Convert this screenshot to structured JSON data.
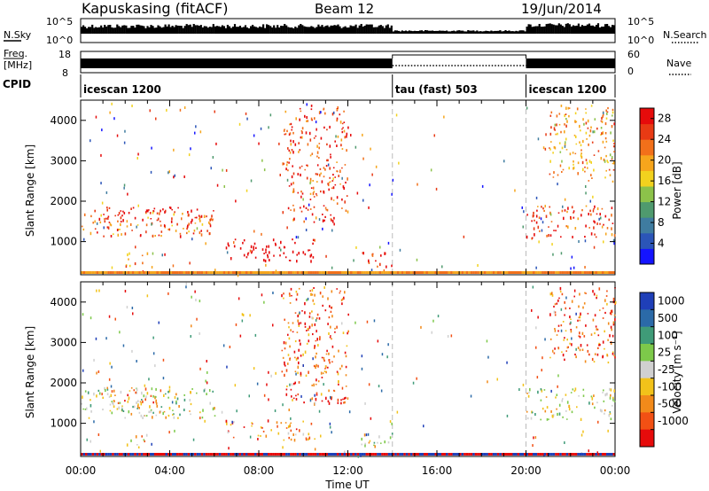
{
  "header": {
    "station": "Kapuskasing (fitACF)",
    "beam": "Beam 12",
    "date": "19/Jun/2014"
  },
  "summary": {
    "nsky_label": "N.Sky",
    "nsky_top": "10^5",
    "nsky_bottom": "10^0",
    "nsearch_top": "10^5",
    "nsearch_bottom": "10^0",
    "nsearch_label": "N.Search",
    "freq_label_1": "Freq.",
    "freq_label_2": "[MHz]",
    "freq_top": "18",
    "freq_bottom": "8",
    "nave_top": "60",
    "nave_bottom": "0",
    "nave_label": "Nave",
    "cpid_label": "CPID",
    "cpid_segments": [
      {
        "label": "icescan 1200",
        "start_h": 0,
        "end_h": 14
      },
      {
        "label": "tau (fast) 503",
        "start_h": 14,
        "end_h": 20
      },
      {
        "label": "icescan 1200",
        "start_h": 20,
        "end_h": 24
      }
    ]
  },
  "chart_data": [
    {
      "type": "heatmap",
      "panel": "power",
      "ylabel": "Slant Range [km]",
      "xlabel": "",
      "ylim": [
        180,
        4500
      ],
      "yticks": [
        "1000",
        "2000",
        "3000",
        "4000"
      ],
      "ytick_values": [
        1000,
        2000,
        3000,
        4000
      ],
      "xlim_hours": [
        0,
        24
      ],
      "colorbar": {
        "label": "Power [dB]",
        "range": [
          0,
          30
        ],
        "ticks": [
          "4",
          "8",
          "12",
          "16",
          "20",
          "24",
          "28"
        ],
        "tick_values": [
          4,
          8,
          12,
          16,
          20,
          24,
          28
        ],
        "colors": [
          "#1414ff",
          "#2b55b8",
          "#3f7ca0",
          "#4f9a6e",
          "#8cc24a",
          "#f2d21e",
          "#f6a51c",
          "#f2701a",
          "#e83a14",
          "#e60b0b"
        ]
      },
      "scatter_bands": [
        {
          "t_start": 0.0,
          "t_end": 6.0,
          "r_low": 1150,
          "r_high": 1800,
          "level": 7
        },
        {
          "t_start": 1.0,
          "t_end": 5.5,
          "r_low": 1500,
          "r_high": 1900,
          "level": 10
        },
        {
          "t_start": 2.0,
          "t_end": 3.0,
          "r_low": 400,
          "r_high": 750,
          "level": 6
        },
        {
          "t_start": 6.5,
          "t_end": 8.5,
          "r_low": 600,
          "r_high": 1100,
          "level": 11
        },
        {
          "t_start": 8.0,
          "t_end": 10.5,
          "r_low": 500,
          "r_high": 1100,
          "level": 13
        },
        {
          "t_start": 9.0,
          "t_end": 12.0,
          "r_low": 1500,
          "r_high": 4400,
          "level": 8
        },
        {
          "t_start": 12.5,
          "t_end": 14.0,
          "r_low": 400,
          "r_high": 800,
          "level": 9
        },
        {
          "t_start": 20.0,
          "t_end": 24.0,
          "r_low": 1100,
          "r_high": 1900,
          "level": 8
        },
        {
          "t_start": 21.0,
          "t_end": 24.0,
          "r_low": 2500,
          "r_high": 4400,
          "level": 6
        }
      ]
    },
    {
      "type": "heatmap",
      "panel": "velocity",
      "ylabel": "Slant Range [km]",
      "xlabel": "Time UT",
      "ylim": [
        180,
        4500
      ],
      "yticks": [
        "1000",
        "2000",
        "3000",
        "4000"
      ],
      "ytick_values": [
        1000,
        2000,
        3000,
        4000
      ],
      "xticks": [
        "00:00",
        "04:00",
        "08:00",
        "12:00",
        "16:00",
        "20:00",
        "00:00"
      ],
      "xtick_values_h": [
        0,
        4,
        8,
        12,
        16,
        20,
        24
      ],
      "colorbar": {
        "label": "Velocity [m s⁻¹]",
        "ticks": [
          "1000",
          "500",
          "100",
          "25",
          "-25",
          "-100",
          "-500",
          "-1000"
        ],
        "colors": [
          "#1f3fb8",
          "#2b6aa8",
          "#3f9b78",
          "#7dc94a",
          "#d0d0d0",
          "#f2c21a",
          "#f28a1a",
          "#f25014",
          "#e60b0b"
        ]
      },
      "scatter_bands": [
        {
          "t_start": 0.0,
          "t_end": 6.0,
          "r_low": 1150,
          "r_high": 1900,
          "vclass": 4
        },
        {
          "t_start": 1.0,
          "t_end": 3.5,
          "r_low": 1400,
          "r_high": 1900,
          "vclass": 6
        },
        {
          "t_start": 2.0,
          "t_end": 3.0,
          "r_low": 400,
          "r_high": 750,
          "vclass": 5
        },
        {
          "t_start": 6.5,
          "t_end": 10.5,
          "r_low": 600,
          "r_high": 1100,
          "vclass": 6
        },
        {
          "t_start": 9.0,
          "t_end": 12.0,
          "r_low": 1500,
          "r_high": 4400,
          "vclass": 7
        },
        {
          "t_start": 12.5,
          "t_end": 14.0,
          "r_low": 400,
          "r_high": 800,
          "vclass": 4
        },
        {
          "t_start": 20.0,
          "t_end": 24.0,
          "r_low": 1100,
          "r_high": 1900,
          "vclass": 4
        },
        {
          "t_start": 21.0,
          "t_end": 24.0,
          "r_low": 2500,
          "r_high": 4400,
          "vclass": 7
        }
      ]
    }
  ]
}
